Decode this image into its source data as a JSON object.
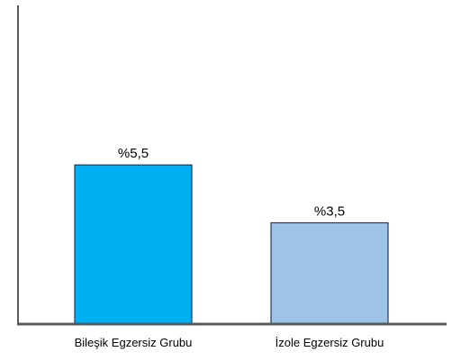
{
  "chart_data": {
    "type": "bar",
    "title": "",
    "xlabel": "",
    "ylabel": "",
    "categories": [
      "Bileşik Egzersiz Grubu",
      "İzole Egzersiz Grubu"
    ],
    "values": [
      5.5,
      3.5
    ],
    "value_labels": [
      "%5,5",
      "%3,5"
    ],
    "colors": [
      "#00b0f0",
      "#9dc3e6"
    ],
    "bar_edge_color": "#1f3864",
    "axis_color": "#595959",
    "ylim": [
      0,
      11.2
    ],
    "grid": false,
    "legend": "none"
  }
}
